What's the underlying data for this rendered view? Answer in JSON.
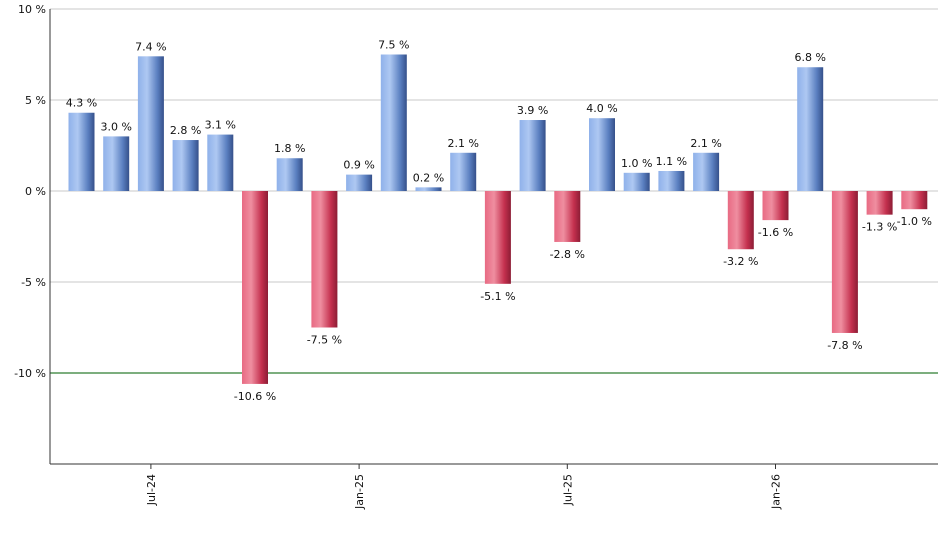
{
  "chart_data": {
    "type": "bar",
    "title": "",
    "xlabel": "",
    "ylabel": "",
    "ylim": [
      -15,
      10
    ],
    "yticks": [
      {
        "value": 10,
        "label": "10 %"
      },
      {
        "value": 5,
        "label": "5 %"
      },
      {
        "value": 0,
        "label": "0 %"
      },
      {
        "value": -5,
        "label": "-5 %"
      },
      {
        "value": -10,
        "label": "-10 %"
      }
    ],
    "xtick_labels": [
      {
        "index": 2,
        "label": "Jul-24"
      },
      {
        "index": 8,
        "label": "Jan-25"
      },
      {
        "index": 14,
        "label": "Jul-25"
      },
      {
        "index": 20,
        "label": "Jan-26"
      }
    ],
    "reference_line": {
      "value": -10,
      "color": "#2e7d32"
    },
    "grid": true,
    "values": [
      4.3,
      3.0,
      7.4,
      2.8,
      3.1,
      -10.6,
      1.8,
      -7.5,
      0.9,
      7.5,
      0.2,
      2.1,
      -5.1,
      3.9,
      -2.8,
      4.0,
      1.0,
      1.1,
      2.1,
      -3.2,
      -1.6,
      6.8,
      -7.8,
      -1.3,
      -1.0
    ],
    "value_labels": [
      "4.3 %",
      "3.0 %",
      "7.4 %",
      "2.8 %",
      "3.1 %",
      "-10.6 %",
      "1.8 %",
      "-7.5 %",
      "0.9 %",
      "7.5 %",
      "0.2 %",
      "2.1 %",
      "-5.1 %",
      "3.9 %",
      "-2.8 %",
      "4.0 %",
      "1.0 %",
      "1.1 %",
      "2.1 %",
      "-3.2 %",
      "-1.6 %",
      "6.8 %",
      "-7.8 %",
      "-1.3 %",
      "-1.0 %"
    ],
    "colors": {
      "positive": "#5b84c8",
      "negative": "#c8314f"
    }
  }
}
